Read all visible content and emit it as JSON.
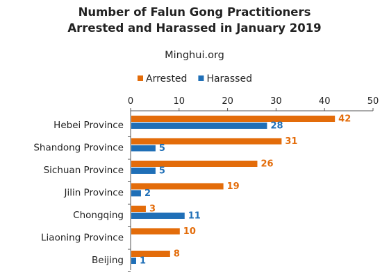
{
  "chart_data": {
    "type": "bar",
    "orientation": "horizontal",
    "title_line1": "Number of Falun Gong Practitioners",
    "title_line2": "Arrested and Harassed in January 2019",
    "subtitle": "Minghui.org",
    "categories": [
      "Hebei Province",
      "Shandong Province",
      "Sichuan Province",
      "Jilin Province",
      "Chongqing",
      "Liaoning Province",
      "Beijing"
    ],
    "series": [
      {
        "name": "Arrested",
        "color": "#e36c0a",
        "values": [
          42,
          31,
          26,
          19,
          3,
          10,
          8
        ]
      },
      {
        "name": "Harassed",
        "color": "#1f6fb7",
        "values": [
          28,
          5,
          5,
          2,
          11,
          null,
          1
        ]
      }
    ],
    "xlim": [
      0,
      50
    ],
    "xticks": [
      0,
      10,
      20,
      30,
      40,
      50
    ],
    "x_axis_position": "top",
    "legend_position": "top",
    "grid": false
  }
}
